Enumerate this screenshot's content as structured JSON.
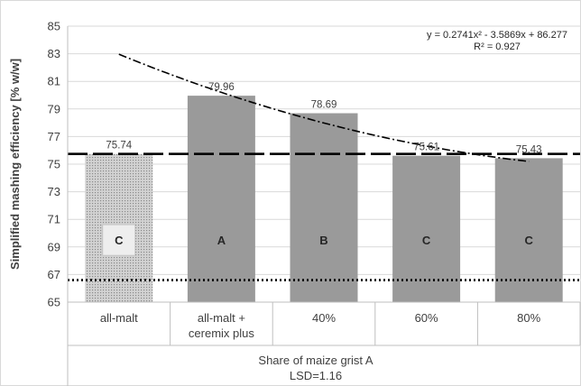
{
  "chart_data": {
    "type": "bar",
    "title": "",
    "ylabel": "Simplified mashing efficiency [% w/w]",
    "xlabel": "Share of maize grist A",
    "footnote": "LSD=1.16",
    "ylim": [
      65,
      85
    ],
    "yticks": [
      "65",
      "67",
      "69",
      "71",
      "73",
      "75",
      "77",
      "79",
      "81",
      "83",
      "85"
    ],
    "grid": true,
    "categories": [
      {
        "lines": [
          "all-malt"
        ]
      },
      {
        "lines": [
          "all-malt +",
          "ceremix plus"
        ]
      },
      {
        "lines": [
          "40%"
        ]
      },
      {
        "lines": [
          "60%"
        ]
      },
      {
        "lines": [
          "80%"
        ]
      }
    ],
    "values": [
      75.74,
      79.96,
      78.69,
      75.61,
      75.43
    ],
    "value_labels": [
      "75.74",
      "79.96",
      "78.69",
      "75.61",
      "75.43"
    ],
    "group_letters": [
      "C",
      "A",
      "B",
      "C",
      "C"
    ],
    "bar_colors": [
      "#c4c4c4",
      "#9a9a9a",
      "#9a9a9a",
      "#9a9a9a",
      "#9a9a9a"
    ],
    "first_bar_pattern": "dotted",
    "reference_lines": [
      {
        "style": "dashed",
        "y": 75.74
      },
      {
        "style": "dotted",
        "y": 66.6
      }
    ],
    "trendline": {
      "style": "dash-dot",
      "equation": "y = 0.2741x² - 3.5869x + 86.277",
      "r2": "R² = 0.927",
      "coef": [
        0.2741,
        -3.5869,
        86.277
      ],
      "x_range": [
        1,
        5
      ]
    }
  }
}
